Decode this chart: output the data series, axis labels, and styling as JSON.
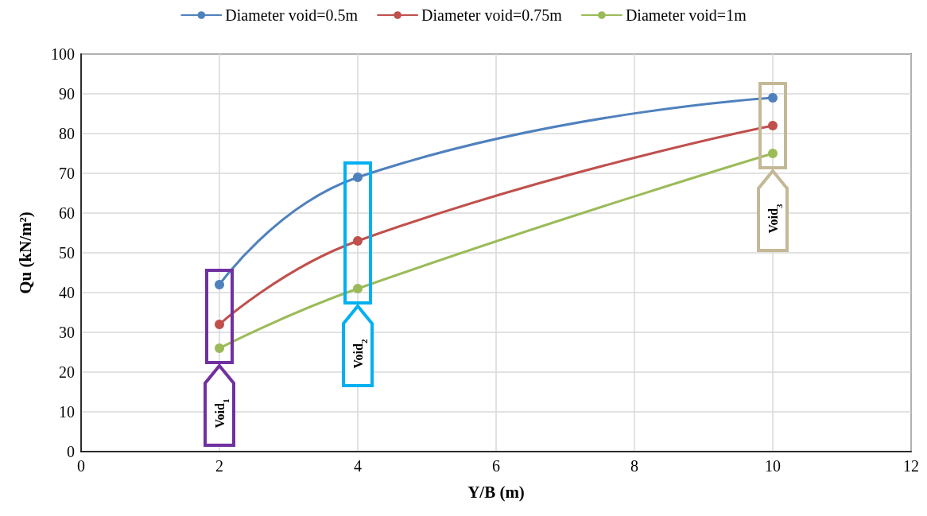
{
  "chart_data": {
    "type": "line",
    "xlabel": "Y/B (m)",
    "ylabel": "Qu (kN/m²)",
    "x": [
      2,
      4,
      10
    ],
    "series": [
      {
        "name": "Diameter void=0.5m",
        "color": "#4f81bd",
        "values": [
          42,
          69,
          89
        ]
      },
      {
        "name": "Diameter void=0.75m",
        "color": "#c0504d",
        "values": [
          32,
          53,
          82
        ]
      },
      {
        "name": "Diameter void=1m",
        "color": "#9bbb59",
        "values": [
          26,
          41,
          75
        ]
      }
    ],
    "xlim": [
      0,
      12
    ],
    "xticks": [
      0,
      2,
      4,
      6,
      8,
      10,
      12
    ],
    "ylim": [
      0,
      100
    ],
    "yticks": [
      0,
      10,
      20,
      30,
      40,
      50,
      60,
      70,
      80,
      90,
      100
    ],
    "grid": true,
    "legend": "top",
    "marker": "circle",
    "line_style": "solid",
    "annotations": [
      "Void$_{1}$",
      "Void$_{2}$",
      "Void$_{3}$"
    ]
  }
}
